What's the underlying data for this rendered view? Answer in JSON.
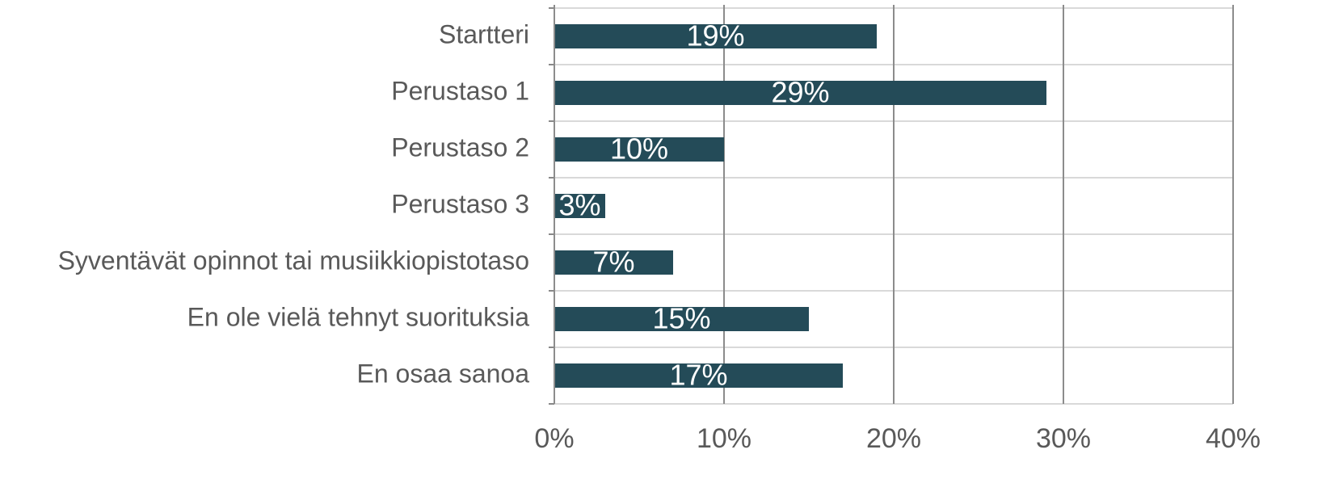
{
  "chart_data": {
    "type": "bar",
    "orientation": "horizontal",
    "categories": [
      "Startteri",
      "Perustaso 1",
      "Perustaso 2",
      "Perustaso 3",
      "Syventävät opinnot tai musiikkiopistotaso",
      "En ole vielä tehnyt suorituksia",
      "En osaa sanoa"
    ],
    "values": [
      19,
      29,
      10,
      3,
      7,
      15,
      17
    ],
    "value_labels": [
      "19%",
      "29%",
      "10%",
      "3%",
      "7%",
      "15%",
      "17%"
    ],
    "color": "#244b58",
    "xlim": [
      0,
      40
    ],
    "xticks": [
      {
        "value": 0,
        "label": "0%"
      },
      {
        "value": 10,
        "label": "10%"
      },
      {
        "value": 20,
        "label": "20%"
      },
      {
        "value": 30,
        "label": "30%"
      },
      {
        "value": 40,
        "label": "40%"
      }
    ],
    "grid": true
  }
}
